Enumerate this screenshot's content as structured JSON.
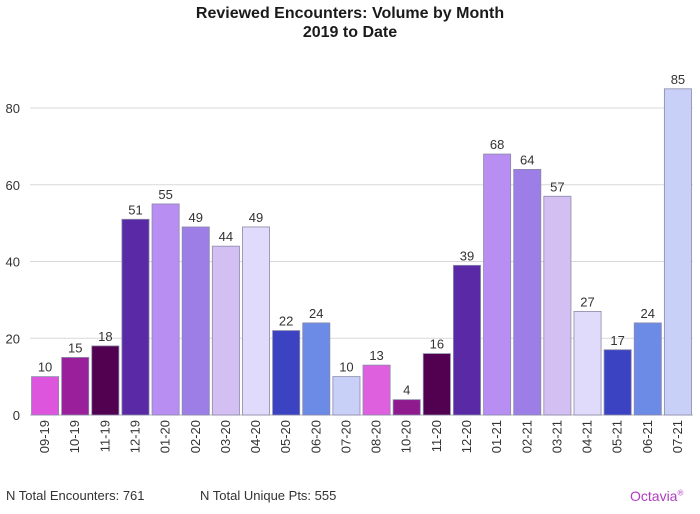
{
  "title": "Reviewed Encounters: Volume by Month",
  "subtitle": "2019 to Date",
  "footer": {
    "total_encounters": "N Total Encounters: 761",
    "total_unique": "N Total Unique Pts: 555",
    "brand": "Octavia",
    "brand_mark": "®"
  },
  "chart_data": {
    "type": "bar",
    "title": "Reviewed Encounters: Volume by Month",
    "subtitle": "2019 to Date",
    "xlabel": "",
    "ylabel": "",
    "ylim": [
      0,
      90
    ],
    "yticks": [
      0,
      20,
      40,
      60,
      80
    ],
    "grid": true,
    "categories": [
      "09-19",
      "10-19",
      "11-19",
      "12-19",
      "01-20",
      "02-20",
      "03-20",
      "04-20",
      "05-20",
      "06-20",
      "07-20",
      "08-20",
      "10-20",
      "11-20",
      "12-20",
      "01-21",
      "02-21",
      "03-21",
      "04-21",
      "05-21",
      "06-21",
      "07-21"
    ],
    "values": [
      10,
      15,
      18,
      51,
      55,
      49,
      44,
      49,
      22,
      24,
      10,
      13,
      4,
      16,
      39,
      68,
      64,
      57,
      27,
      17,
      24,
      85
    ],
    "colors": [
      "#dd55dd",
      "#9a1f9a",
      "#520050",
      "#5a2aa6",
      "#b98ef2",
      "#9c7ee6",
      "#d3bff2",
      "#e0dbfb",
      "#3c43c2",
      "#6b8be6",
      "#c8d0f8",
      "#df60df",
      "#8e1a8e",
      "#520050",
      "#5a2aa6",
      "#b98ef2",
      "#9c7ee6",
      "#d3bff2",
      "#e0dbfb",
      "#3c43c2",
      "#6b8be6",
      "#c8d0f8"
    ]
  }
}
